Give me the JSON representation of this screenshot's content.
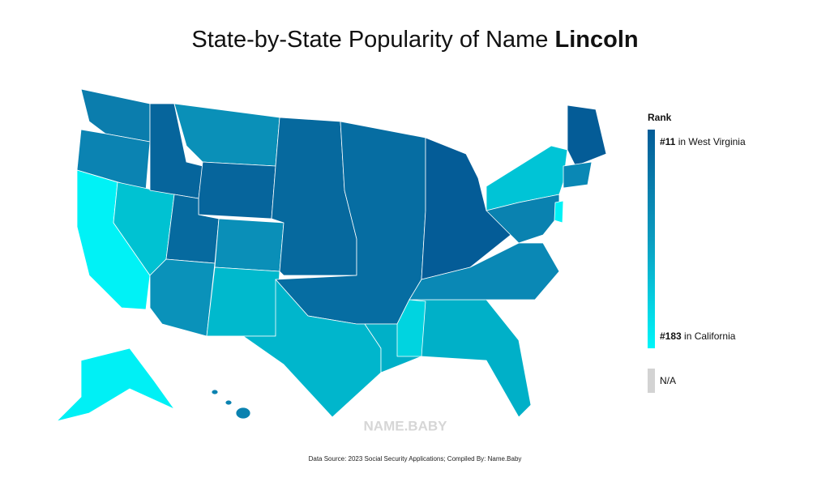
{
  "title": {
    "prefix": "State-by-State Popularity of Name",
    "name": "Lincoln"
  },
  "legend": {
    "title": "Rank",
    "top": {
      "rank": "#11",
      "label": "in West Virginia"
    },
    "bottom": {
      "rank": "#183",
      "label": "in California"
    },
    "na": "N/A"
  },
  "watermark": "NAME.BABY",
  "source": "Data Source: 2023 Social Security Applications; Compiled By: Name.Baby"
}
